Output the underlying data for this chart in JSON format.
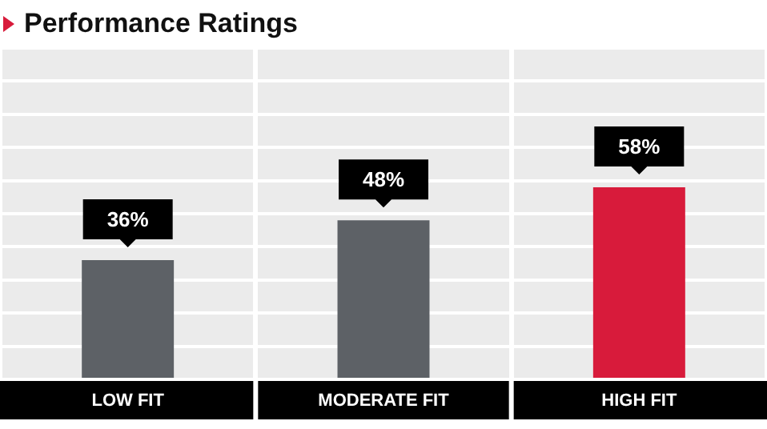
{
  "chart_data": {
    "type": "bar",
    "title": "Performance Ratings",
    "categories": [
      "LOW FIT",
      "MODERATE FIT",
      "HIGH FIT"
    ],
    "values": [
      36,
      48,
      58
    ],
    "colors": [
      "#5d6166",
      "#5d6166",
      "#d81b3b"
    ],
    "value_labels": [
      "36%",
      "48%",
      "58%"
    ],
    "ylim": [
      0,
      100
    ],
    "tick_labels": "x",
    "grid": true,
    "legend": false
  }
}
